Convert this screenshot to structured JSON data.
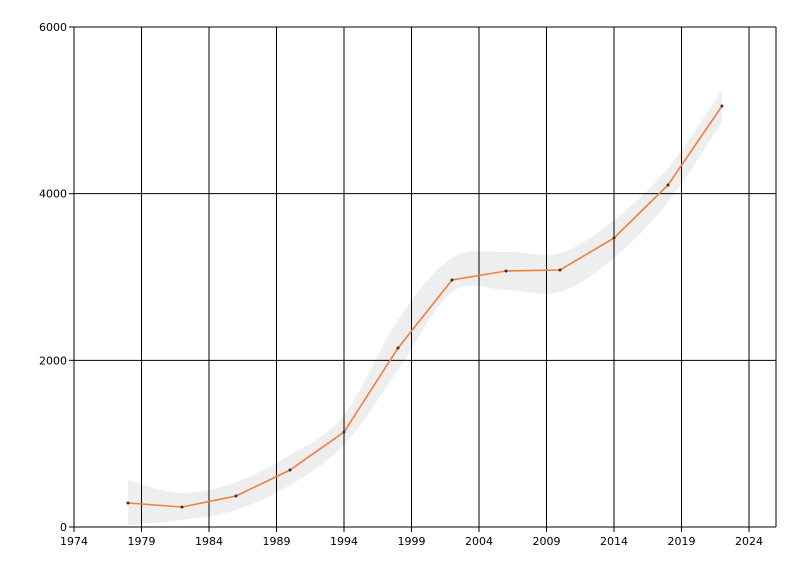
{
  "chart_data": {
    "type": "line",
    "x": [
      1978,
      1982,
      1986,
      1990,
      1994,
      1998,
      2002,
      2006,
      2010,
      2014,
      2018,
      2022
    ],
    "series": [
      {
        "color": "#f07f3c",
        "values": [
          288,
          240,
          372,
          684,
          1140,
          2148,
          2964,
          3072,
          3084,
          3468,
          4104,
          5052
        ]
      }
    ],
    "band": {
      "color": "#eeeeee",
      "lower": [
        24,
        84,
        204,
        504,
        984,
        1884,
        2820,
        2844,
        2820,
        3228,
        3900,
        4860
      ],
      "upper": [
        564,
        408,
        540,
        864,
        1344,
        2484,
        3228,
        3300,
        3288,
        3684,
        4308,
        5244
      ]
    },
    "xlim": [
      1974,
      2026
    ],
    "xticks": [
      1974,
      1979,
      1984,
      1989,
      1994,
      1999,
      2004,
      2009,
      2014,
      2019,
      2024
    ],
    "ylim": [
      0,
      6000
    ],
    "yticks": [
      0,
      2000,
      4000,
      6000
    ],
    "grid": true
  }
}
